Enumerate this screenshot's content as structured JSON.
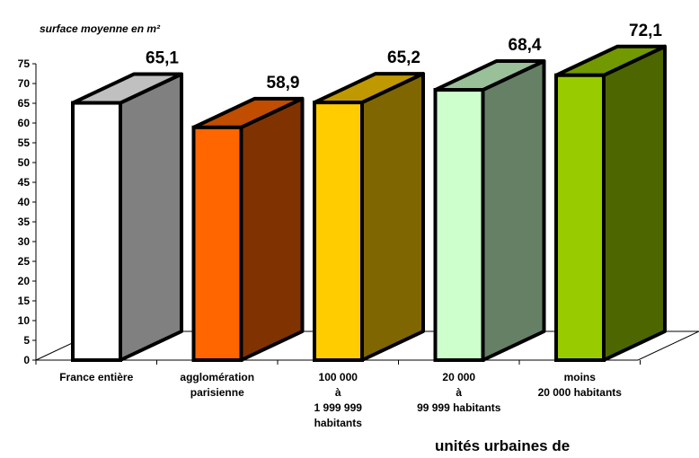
{
  "chart_data": {
    "type": "bar",
    "ylabel": "surface moyenne en m²",
    "xlabel": "unités urbaines de",
    "ylim": [
      0,
      75
    ],
    "yticks": [
      "0",
      "5",
      "10",
      "15",
      "20",
      "25",
      "30",
      "35",
      "40",
      "45",
      "50",
      "55",
      "60",
      "65",
      "70",
      "75"
    ],
    "categories": [
      "France entière",
      "agglomération\nparisienne",
      "100 000\nà\n1 999 999\nhabitants",
      "20 000\nà\n99 999 habitants",
      "moins\n20 000 habitants"
    ],
    "values": [
      65.1,
      58.9,
      65.2,
      68.4,
      72.1
    ],
    "value_labels": [
      "65,1",
      "58,9",
      "65,2",
      "68,4",
      "72,1"
    ],
    "colors": [
      {
        "front": "#ffffff",
        "side": "#808080",
        "top": "#c0c0c0"
      },
      {
        "front": "#ff6600",
        "side": "#803300",
        "top": "#c04d00"
      },
      {
        "front": "#ffcc00",
        "side": "#806600",
        "top": "#c09900"
      },
      {
        "front": "#ccffcc",
        "side": "#668066",
        "top": "#99c099"
      },
      {
        "front": "#99cc00",
        "side": "#4d6600",
        "top": "#739900"
      }
    ]
  }
}
